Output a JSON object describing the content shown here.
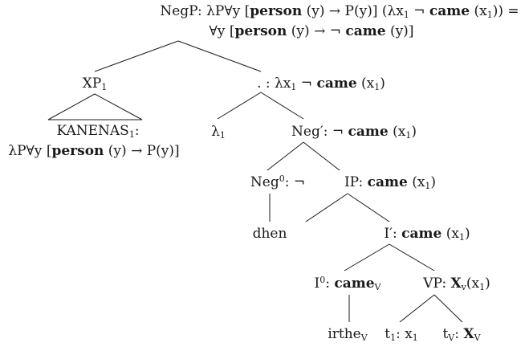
{
  "tree": {
    "root": {
      "line1": "NegP: λP∀y [<b>person</b> (y) → P(y)] (λx<sub>1</sub> ¬ <b>came</b> (x<sub>1</sub>)) =",
      "line2": "∀y [<b>person</b> (y) → ¬ <b>came</b> (y)]"
    },
    "xp": "XP<sub>1</sub>",
    "kanenas": {
      "line1": "KANENAS<sub>1</sub>:",
      "line2": "λP∀y [<b>person</b> (y) → P(y)]"
    },
    "dotnode": ". : λx<sub>1</sub> ¬ <b>came</b> (x<sub>1</sub>)",
    "lambda": "λ<sub>1</sub>",
    "negbar": "Neg′: ¬ <b>came</b> (x<sub>1</sub>)",
    "neg0": "Neg<sup>0</sup>: ¬",
    "dhen": "dhen",
    "ip": "IP: <b>came</b> (x<sub>1</sub>)",
    "ibar": "I′: <b>came</b> (x<sub>1</sub>)",
    "i0": "I<sup>0</sup>: <b>came</b><sub>V</sub>",
    "irthe": "irthe<sub>V</sub>",
    "vp": "VP: <b>X</b><sub>v</sub>(x<sub>1</sub>)",
    "t1": "t<sub>1</sub>: x<sub>1</sub>",
    "tv": "t<sub>V</sub>: <b>X</b><sub>V</sub>"
  }
}
